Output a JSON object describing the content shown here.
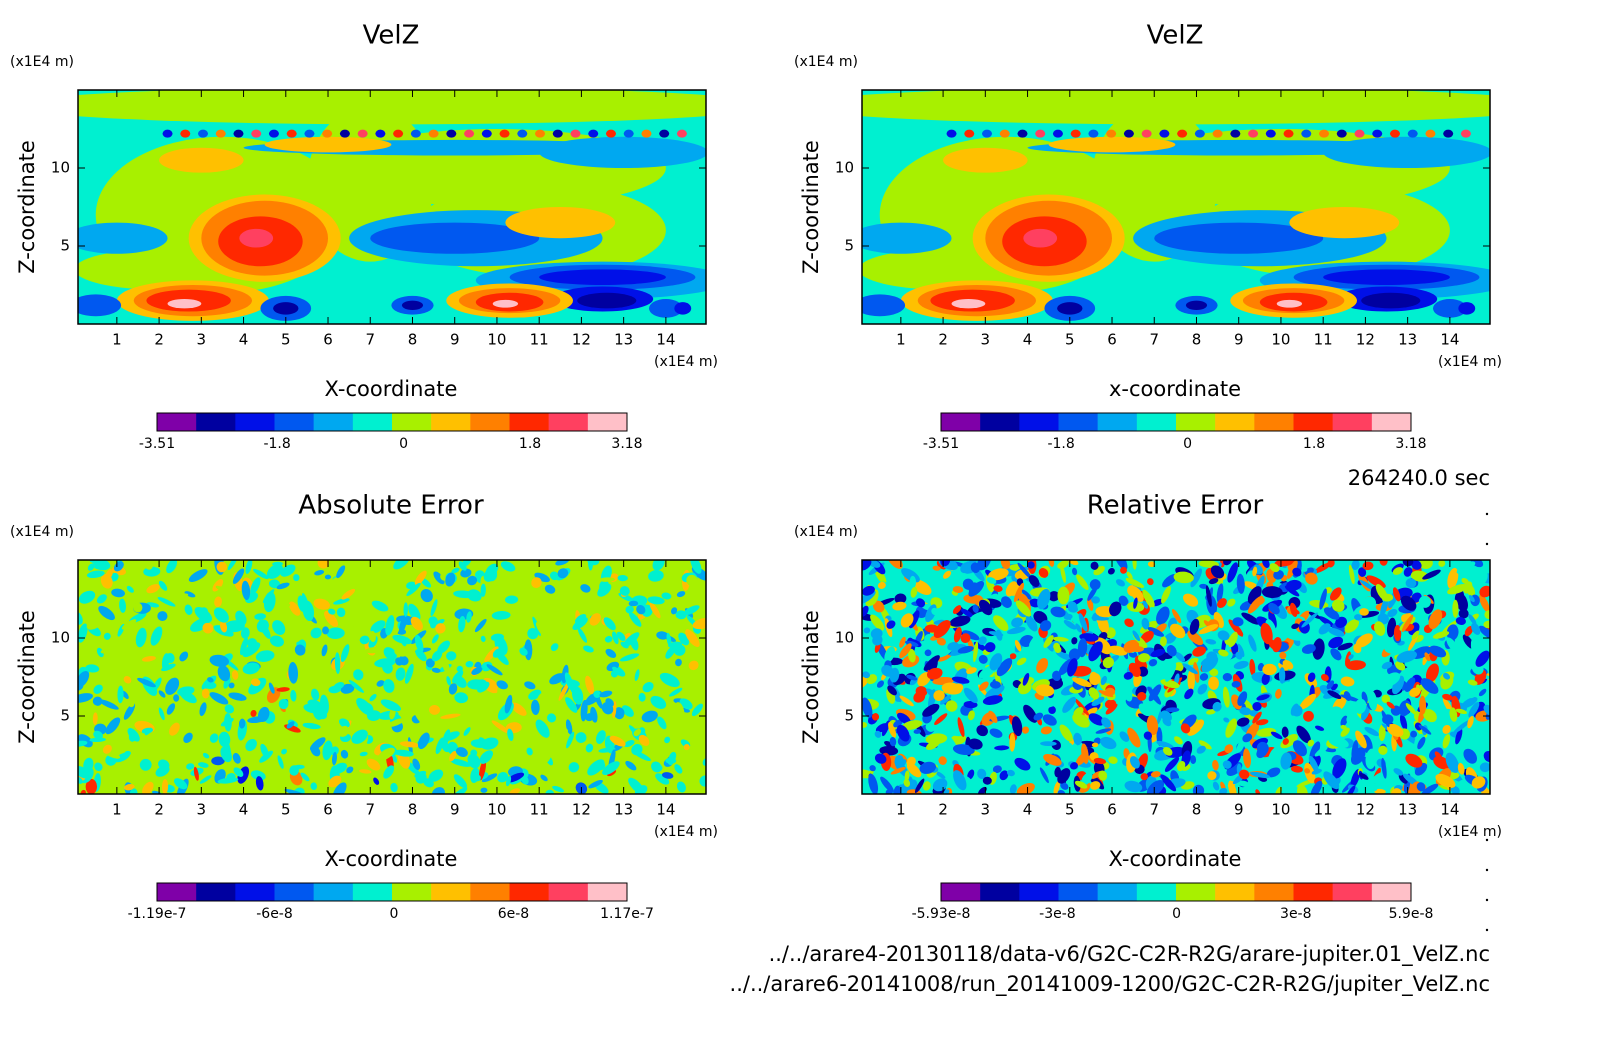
{
  "chart_data": [
    {
      "type": "contour",
      "title": "VelZ",
      "xlabel": "X-coordinate",
      "ylabel": "Z-coordinate",
      "xunit": "(x1E4 m)",
      "yunit": "(x1E4 m)",
      "xlim": [
        0.08,
        14.95
      ],
      "ylim": [
        0,
        15
      ],
      "xticks": [
        1,
        2,
        3,
        4,
        5,
        6,
        7,
        8,
        9,
        10,
        11,
        12,
        13,
        14
      ],
      "yticks": [
        5,
        10
      ],
      "colorbar": {
        "lim": [
          -3.51,
          3.18
        ],
        "ticks": [
          -3.51,
          -1.8,
          0,
          1.8,
          3.18
        ],
        "colors": [
          "#7f00a8",
          "#0000a0",
          "#0010e8",
          "#0058f0",
          "#00a8f0",
          "#00f0d0",
          "#a8f000",
          "#ffc000",
          "#ff8000",
          "#ff2800",
          "#ff4060",
          "#ffc0c8"
        ]
      }
    },
    {
      "type": "contour",
      "title": "VelZ",
      "xlabel": "x-coordinate",
      "ylabel": "Z-coordinate",
      "xunit": "(x1E4 m)",
      "yunit": "(x1E4 m)",
      "xlim": [
        0.08,
        14.95
      ],
      "ylim": [
        0,
        15
      ],
      "xticks": [
        1,
        2,
        3,
        4,
        5,
        6,
        7,
        8,
        9,
        10,
        11,
        12,
        13,
        14
      ],
      "yticks": [
        5,
        10
      ],
      "colorbar": {
        "lim": [
          -3.51,
          3.18
        ],
        "ticks": [
          -3.51,
          -1.8,
          0,
          1.8,
          3.18
        ],
        "colors": [
          "#7f00a8",
          "#0000a0",
          "#0010e8",
          "#0058f0",
          "#00a8f0",
          "#00f0d0",
          "#a8f000",
          "#ffc000",
          "#ff8000",
          "#ff2800",
          "#ff4060",
          "#ffc0c8"
        ]
      }
    },
    {
      "type": "contour",
      "title": "Absolute Error",
      "xlabel": "X-coordinate",
      "ylabel": "Z-coordinate",
      "xunit": "(x1E4 m)",
      "yunit": "(x1E4 m)",
      "xlim": [
        0.08,
        14.95
      ],
      "ylim": [
        0,
        15
      ],
      "xticks": [
        1,
        2,
        3,
        4,
        5,
        6,
        7,
        8,
        9,
        10,
        11,
        12,
        13,
        14
      ],
      "yticks": [
        5,
        10
      ],
      "colorbar": {
        "lim": [
          -1.19e-07,
          1.17e-07
        ],
        "ticks": [
          -1.19e-07,
          -6e-08,
          0,
          6e-08,
          1.17e-07
        ],
        "colors": [
          "#7f00a8",
          "#0000a0",
          "#0010e8",
          "#0058f0",
          "#00a8f0",
          "#00f0d0",
          "#a8f000",
          "#ffc000",
          "#ff8000",
          "#ff2800",
          "#ff4060",
          "#ffc0c8"
        ]
      }
    },
    {
      "type": "contour",
      "title": "Relative Error",
      "xlabel": "X-coordinate",
      "ylabel": "Z-coordinate",
      "xunit": "(x1E4 m)",
      "yunit": "(x1E4 m)",
      "xlim": [
        0.08,
        14.95
      ],
      "ylim": [
        0,
        15
      ],
      "xticks": [
        1,
        2,
        3,
        4,
        5,
        6,
        7,
        8,
        9,
        10,
        11,
        12,
        13,
        14
      ],
      "yticks": [
        5,
        10
      ],
      "colorbar": {
        "lim": [
          -5.93e-08,
          5.9e-08
        ],
        "ticks": [
          -5.93e-08,
          -3e-08,
          0,
          3e-08,
          5.9e-08
        ],
        "colors": [
          "#7f00a8",
          "#0000a0",
          "#0010e8",
          "#0058f0",
          "#00a8f0",
          "#00f0d0",
          "#a8f000",
          "#ffc000",
          "#ff8000",
          "#ff2800",
          "#ff4060",
          "#ffc0c8"
        ]
      }
    }
  ],
  "annotations": [
    "264240.0 sec",
    "../../arare4-20130118/data-v6/G2C-C2R-R2G/arare-jupiter.01_VelZ.nc",
    "../../arare6-20141008/run_20141009-1200/G2C-C2R-R2G/jupiter_VelZ.nc"
  ]
}
